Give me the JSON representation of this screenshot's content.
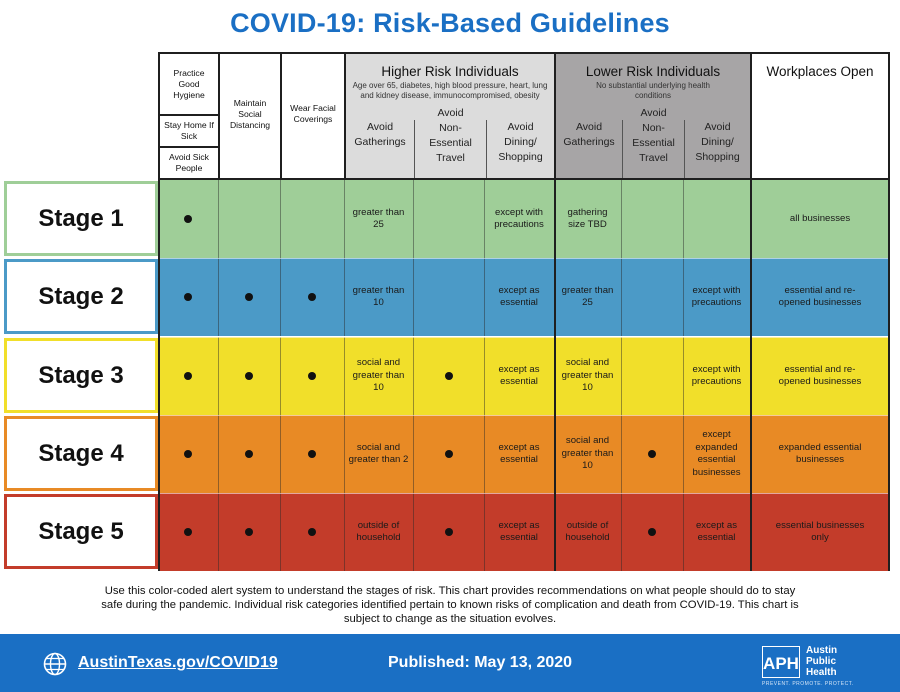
{
  "title": "COVID-19: Risk-Based Guidelines",
  "colors": {
    "title_blue": "#1a6fc4",
    "stage1": "#9fce98",
    "stage2": "#4b9ac7",
    "stage3": "#f1df2a",
    "stage4": "#e88a25",
    "stage5": "#c33c2a",
    "higher_risk_header": "#dcdcdc",
    "lower_risk_header": "#a7a5a6"
  },
  "header": {
    "col1_boxes": [
      "Practice Good Hygiene",
      "Stay Home If Sick",
      "Avoid Sick People"
    ],
    "col2": "Maintain Social Distancing",
    "col3": "Wear Facial Coverings",
    "higher": {
      "title": "Higher Risk Individuals",
      "subtitle": "Age over 65, diabetes, high blood pressure, heart, lung and kidney disease, immunocompromised, obesity",
      "cols": [
        "Avoid Gatherings",
        "Avoid Non-Essential Travel",
        "Avoid Dining/ Shopping"
      ]
    },
    "lower": {
      "title": "Lower Risk Individuals",
      "subtitle": "No substantial underlying health conditions",
      "cols": [
        "Avoid Gatherings",
        "Avoid Non-Essential Travel",
        "Avoid Dining/ Shopping"
      ]
    },
    "workplaces": "Workplaces Open"
  },
  "stages": [
    {
      "label": "Stage 1",
      "cells": [
        "•",
        "",
        "",
        "greater than 25",
        "",
        "except with precautions",
        "gathering size TBD",
        "",
        "",
        "all businesses"
      ]
    },
    {
      "label": "Stage 2",
      "cells": [
        "•",
        "•",
        "•",
        "greater than 10",
        "",
        "except as essential",
        "greater than 25",
        "",
        "except with precautions",
        "essential and re-opened businesses"
      ]
    },
    {
      "label": "Stage 3",
      "cells": [
        "•",
        "•",
        "•",
        "social and greater than 10",
        "•",
        "except as essential",
        "social and greater than 10",
        "",
        "except with precautions",
        "essential and re-opened businesses"
      ]
    },
    {
      "label": "Stage 4",
      "cells": [
        "•",
        "•",
        "•",
        "social and greater than 2",
        "•",
        "except as essential",
        "social and greater than 10",
        "•",
        "except expanded essential businesses",
        "expanded essential businesses"
      ]
    },
    {
      "label": "Stage 5",
      "cells": [
        "•",
        "•",
        "•",
        "outside of household",
        "•",
        "except as essential",
        "outside of household",
        "•",
        "except as essential",
        "essential businesses only"
      ]
    }
  ],
  "footnote": "Use this color-coded alert system to understand the stages of risk. This chart provides recommendations on what people should do to stay safe during the pandemic. Individual risk categories identified pertain to known risks of complication and death from COVID-19. This chart is subject to change as the situation evolves.",
  "footer": {
    "link": "AustinTexas.gov/COVID19",
    "published": "Published: May 13, 2020",
    "logo_letters": "APH",
    "org_lines": [
      "Austin",
      "Public",
      "Health"
    ],
    "tagline": "PREVENT. PROMOTE. PROTECT."
  }
}
